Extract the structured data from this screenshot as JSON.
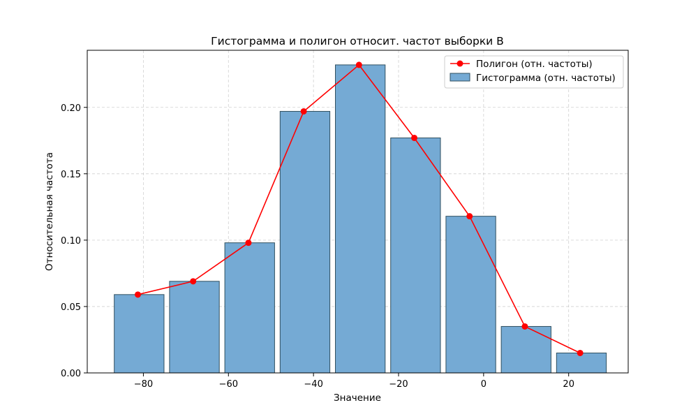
{
  "chart_data": {
    "type": "bar",
    "title": "Гистограмма и полигон относит. частот выборки B",
    "xlabel": "Значение",
    "ylabel": "Относительная частота",
    "xlim": [
      -93.2,
      34.0
    ],
    "ylim": [
      0,
      0.243
    ],
    "bin_edges": [
      -87.5,
      -74.5,
      -61.5,
      -48.5,
      -35.5,
      -22.5,
      -9.5,
      3.5,
      16.5,
      29.5
    ],
    "histogram": {
      "name": "Гистограмма (отн. частоты)",
      "color": "#75aad4",
      "values": [
        0.059,
        0.069,
        0.098,
        0.197,
        0.232,
        0.177,
        0.118,
        0.035,
        0.015
      ]
    },
    "polygon": {
      "name": "Полигон (отн. частоты)",
      "color": "#ff0000",
      "x": [
        -81.3,
        -68.3,
        -55.3,
        -42.3,
        -29.3,
        -16.3,
        -3.3,
        9.7,
        22.7
      ],
      "y": [
        0.059,
        0.069,
        0.098,
        0.197,
        0.232,
        0.177,
        0.118,
        0.035,
        0.015
      ]
    },
    "xticks": [
      -80,
      -60,
      -40,
      -20,
      0,
      20
    ],
    "yticks": [
      0.0,
      0.05,
      0.1,
      0.15,
      0.2
    ],
    "xtick_labels": [
      "−80",
      "−60",
      "−40",
      "−20",
      "0",
      "20"
    ],
    "ytick_labels": [
      "0.00",
      "0.05",
      "0.10",
      "0.15",
      "0.20"
    ],
    "grid": true,
    "legend_position": "top-right"
  }
}
